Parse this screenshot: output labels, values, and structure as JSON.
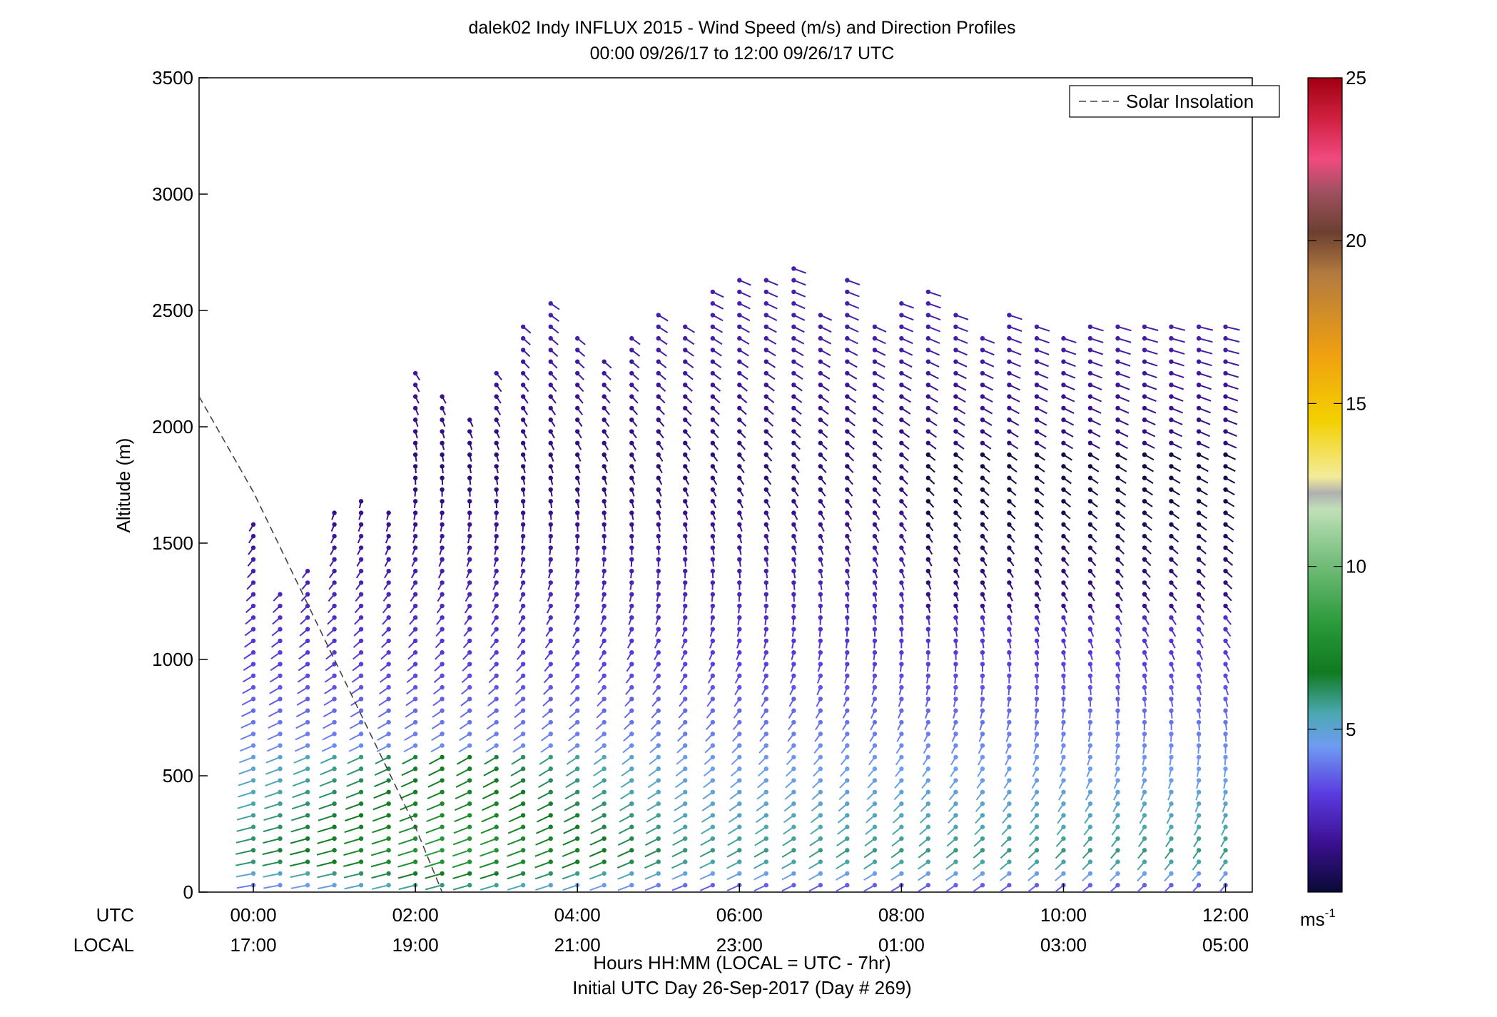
{
  "chart_data": {
    "type": "scatter",
    "subtype": "wind-barb-profiles",
    "title_line1": "dalek02 Indy INFLUX 2015 - Wind Speed (m/s) and Direction Profiles",
    "title_line2": "00:00 09/26/17 to 12:00 09/26/17  UTC",
    "ylabel": "Altitude (m)",
    "xlabel_line1": "Hours HH:MM  (LOCAL = UTC - 7hr)",
    "xlabel_line2": "Initial UTC Day 26-Sep-2017 (Day # 269)",
    "x_row_labels": {
      "utc": "UTC",
      "local": "LOCAL"
    },
    "utc_ticks": [
      "00:00",
      "02:00",
      "04:00",
      "06:00",
      "08:00",
      "10:00",
      "12:00"
    ],
    "local_ticks": [
      "17:00",
      "19:00",
      "21:00",
      "23:00",
      "01:00",
      "03:00",
      "05:00"
    ],
    "xlim_hours": [
      -0.67,
      12.33
    ],
    "ylim": [
      0,
      3500
    ],
    "yticks": [
      0,
      500,
      1000,
      1500,
      2000,
      2500,
      3000,
      3500
    ],
    "colorbar": {
      "min": 0,
      "max": 25,
      "ticks": [
        5,
        10,
        15,
        20,
        25
      ],
      "unit_base": "ms",
      "unit_exp": "-1"
    },
    "legend": {
      "entry": "Solar Insolation",
      "style": "dashed",
      "position": "top-right"
    },
    "solar_insolation_line": [
      [
        -0.67,
        2130
      ],
      [
        0,
        1720
      ],
      [
        1,
        1000
      ],
      [
        1.5,
        640
      ],
      [
        2,
        280
      ],
      [
        2.33,
        0
      ]
    ],
    "profile_times_hours": [
      0,
      0.33,
      0.67,
      1,
      1.33,
      1.67,
      2,
      2.33,
      2.67,
      3,
      3.33,
      3.67,
      4,
      4.33,
      4.67,
      5,
      5.33,
      5.67,
      6,
      6.33,
      6.67,
      7,
      7.33,
      7.67,
      8,
      8.33,
      8.67,
      9,
      9.33,
      9.67,
      10,
      10.33,
      10.67,
      11,
      11.33,
      11.67,
      12
    ],
    "profile_top_altitudes": [
      1600,
      1300,
      1380,
      1650,
      1700,
      1650,
      2250,
      2150,
      2050,
      2230,
      2450,
      2550,
      2380,
      2300,
      2400,
      2480,
      2470,
      2600,
      2630,
      2650,
      2700,
      2500,
      2650,
      2450,
      2550,
      2600,
      2500,
      2400,
      2500,
      2450,
      2420,
      2450,
      2450,
      2450,
      2450,
      2450,
      2450
    ],
    "speed_profile_ms": [
      {
        "z": 0,
        "speed": 3
      },
      {
        "z": 150,
        "speed": 6
      },
      {
        "z": 400,
        "speed": 5
      },
      {
        "z": 700,
        "speed": 4
      },
      {
        "z": 1000,
        "speed": 3
      },
      {
        "z": 1400,
        "speed": 2
      },
      {
        "z": 1800,
        "speed": 1
      },
      {
        "z": 2400,
        "speed": 2
      }
    ]
  }
}
